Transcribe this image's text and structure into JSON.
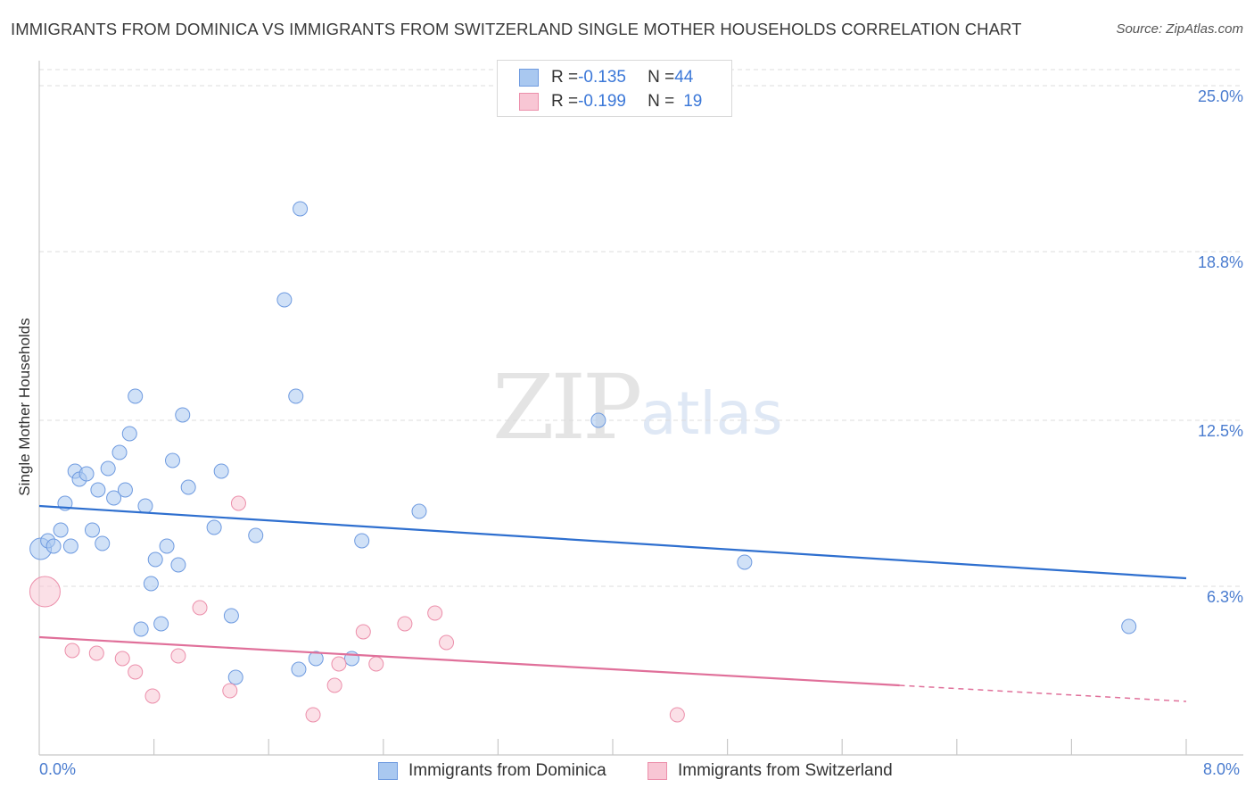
{
  "title": "IMMIGRANTS FROM DOMINICA VS IMMIGRANTS FROM SWITZERLAND SINGLE MOTHER HOUSEHOLDS CORRELATION CHART",
  "source": "Source: ZipAtlas.com",
  "watermark": {
    "zip": "ZIP",
    "atlas": "atlas"
  },
  "stats": [
    {
      "r_label": "R = ",
      "r_value": "-0.135",
      "n_label": "N = ",
      "n_value": "44",
      "color": "#a9c8f0",
      "border": "#6f9be0"
    },
    {
      "r_label": "R = ",
      "r_value": "-0.199",
      "n_label": "N = ",
      "n_value": "19",
      "color": "#f8c6d4",
      "border": "#ec8fab"
    }
  ],
  "legend": [
    {
      "label": "Immigrants from Dominica",
      "color": "#a9c8f0",
      "border": "#6f9be0"
    },
    {
      "label": "Immigrants from Switzerland",
      "color": "#f8c6d4",
      "border": "#ec8fab"
    }
  ],
  "chart_data": {
    "type": "scatter",
    "title": "IMMIGRANTS FROM DOMINICA VS IMMIGRANTS FROM SWITZERLAND SINGLE MOTHER HOUSEHOLDS CORRELATION CHART",
    "xlabel": "",
    "ylabel": "Single Mother Households",
    "xlim": [
      0,
      8.0
    ],
    "ylim": [
      0,
      25.6
    ],
    "x_tick_labels": [
      "0.0%",
      "8.0%"
    ],
    "y_ticks": [
      6.3,
      12.5,
      18.8,
      25.0
    ],
    "y_tick_labels": [
      "6.3%",
      "12.5%",
      "18.8%",
      "25.0%"
    ],
    "grid": true,
    "series": [
      {
        "name": "Immigrants from Dominica",
        "color": "#a9c8f0",
        "stroke": "#6f9be0",
        "line_color": "#2e6fcf",
        "trend": {
          "x": [
            0.0,
            8.0
          ],
          "y": [
            9.3,
            6.6
          ]
        },
        "points": [
          [
            0.01,
            7.7,
            2
          ],
          [
            0.06,
            8.0,
            1
          ],
          [
            0.1,
            7.8,
            1
          ],
          [
            0.15,
            8.4,
            1
          ],
          [
            0.18,
            9.4,
            1
          ],
          [
            0.22,
            7.8,
            1
          ],
          [
            0.25,
            10.6,
            1
          ],
          [
            0.28,
            10.3,
            1
          ],
          [
            0.33,
            10.5,
            1
          ],
          [
            0.37,
            8.4,
            1
          ],
          [
            0.41,
            9.9,
            1
          ],
          [
            0.44,
            7.9,
            1
          ],
          [
            0.48,
            10.7,
            1
          ],
          [
            0.52,
            9.6,
            1
          ],
          [
            0.56,
            11.3,
            1
          ],
          [
            0.6,
            9.9,
            1
          ],
          [
            0.63,
            12.0,
            1
          ],
          [
            0.67,
            13.4,
            1
          ],
          [
            0.71,
            4.7,
            1
          ],
          [
            0.74,
            9.3,
            1
          ],
          [
            0.78,
            6.4,
            1
          ],
          [
            0.81,
            7.3,
            1
          ],
          [
            0.85,
            4.9,
            1
          ],
          [
            0.89,
            7.8,
            1
          ],
          [
            0.93,
            11.0,
            1
          ],
          [
            0.97,
            7.1,
            1
          ],
          [
            1.0,
            12.7,
            1
          ],
          [
            1.04,
            10.0,
            1
          ],
          [
            1.22,
            8.5,
            1
          ],
          [
            1.27,
            10.6,
            1
          ],
          [
            1.34,
            5.2,
            1
          ],
          [
            1.37,
            2.9,
            1
          ],
          [
            1.51,
            8.2,
            1
          ],
          [
            1.71,
            17.0,
            1
          ],
          [
            1.79,
            13.4,
            1
          ],
          [
            1.81,
            3.2,
            1
          ],
          [
            1.82,
            20.4,
            1
          ],
          [
            1.93,
            3.6,
            1
          ],
          [
            2.18,
            3.6,
            1
          ],
          [
            2.25,
            8.0,
            1
          ],
          [
            2.65,
            9.1,
            1
          ],
          [
            3.9,
            12.5,
            1
          ],
          [
            4.92,
            7.2,
            1
          ],
          [
            7.6,
            4.8,
            1
          ]
        ]
      },
      {
        "name": "Immigrants from Switzerland",
        "color": "#f8c6d4",
        "stroke": "#ec8fab",
        "line_color": "#e0709a",
        "trend": {
          "x": [
            0.0,
            6.0
          ],
          "y": [
            4.4,
            2.6
          ]
        },
        "trend_dashed": {
          "x": [
            6.0,
            8.0
          ],
          "y": [
            2.6,
            2.0
          ]
        },
        "points": [
          [
            0.04,
            6.1,
            3
          ],
          [
            0.23,
            3.9,
            1
          ],
          [
            0.4,
            3.8,
            1
          ],
          [
            0.58,
            3.6,
            1
          ],
          [
            0.67,
            3.1,
            1
          ],
          [
            0.79,
            2.2,
            1
          ],
          [
            0.97,
            3.7,
            1
          ],
          [
            1.12,
            5.5,
            1
          ],
          [
            1.33,
            2.4,
            1
          ],
          [
            1.39,
            9.4,
            1
          ],
          [
            1.91,
            1.5,
            1
          ],
          [
            2.09,
            3.4,
            1
          ],
          [
            2.06,
            2.6,
            1
          ],
          [
            2.26,
            4.6,
            1
          ],
          [
            2.35,
            3.4,
            1
          ],
          [
            2.55,
            4.9,
            1
          ],
          [
            2.76,
            5.3,
            1
          ],
          [
            2.84,
            4.2,
            1
          ],
          [
            4.45,
            1.5,
            1
          ]
        ]
      }
    ]
  }
}
